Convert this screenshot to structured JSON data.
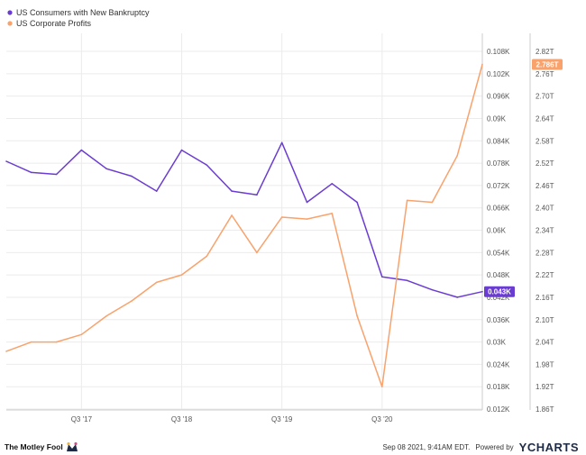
{
  "chart_data": {
    "type": "line",
    "series": [
      {
        "name": "US Consumers with New Bankruptcy",
        "color": "#6a3cd1",
        "axis": "left",
        "last_value_label": "0.043K",
        "values": [
          0.0785,
          0.0755,
          0.075,
          0.0815,
          0.0765,
          0.0745,
          0.0705,
          0.0815,
          0.0775,
          0.0705,
          0.0695,
          0.0835,
          0.0675,
          0.0725,
          0.0675,
          0.0475,
          0.0465,
          0.044,
          0.042,
          0.0435
        ]
      },
      {
        "name": "US Corporate Profits",
        "color": "#f9a26c",
        "axis": "right",
        "last_value_label": "2.786T",
        "values": [
          2.015,
          2.04,
          2.04,
          2.06,
          2.11,
          2.15,
          2.2,
          2.22,
          2.27,
          2.38,
          2.28,
          2.375,
          2.37,
          2.385,
          2.11,
          1.92,
          2.42,
          2.415,
          2.54,
          2.785
        ]
      }
    ],
    "x_ticks": [
      "Q3 '17",
      "Q3 '18",
      "Q3 '19",
      "Q3 '20"
    ],
    "x_tick_index": [
      3,
      7,
      11,
      15
    ],
    "left_axis": {
      "ticks": [
        "0.108K",
        "0.102K",
        "0.096K",
        "0.09K",
        "0.084K",
        "0.078K",
        "0.072K",
        "0.066K",
        "0.06K",
        "0.054K",
        "0.048K",
        "0.042K",
        "0.036K",
        "0.03K",
        "0.024K",
        "0.018K",
        "0.012K"
      ],
      "min": 0.012,
      "max": 0.108
    },
    "right_axis": {
      "ticks": [
        "2.82T",
        "2.76T",
        "2.70T",
        "2.64T",
        "2.58T",
        "2.52T",
        "2.46T",
        "2.40T",
        "2.34T",
        "2.28T",
        "2.22T",
        "2.16T",
        "2.10T",
        "2.04T",
        "1.98T",
        "1.92T",
        "1.86T"
      ],
      "min": 1.86,
      "max": 2.82
    },
    "grid": true
  },
  "footer": {
    "brand": "The Motley Fool",
    "timestamp": "Sep 08 2021, 9:41AM EDT.",
    "powered_by": "Powered by",
    "provider": "YCHARTS"
  }
}
